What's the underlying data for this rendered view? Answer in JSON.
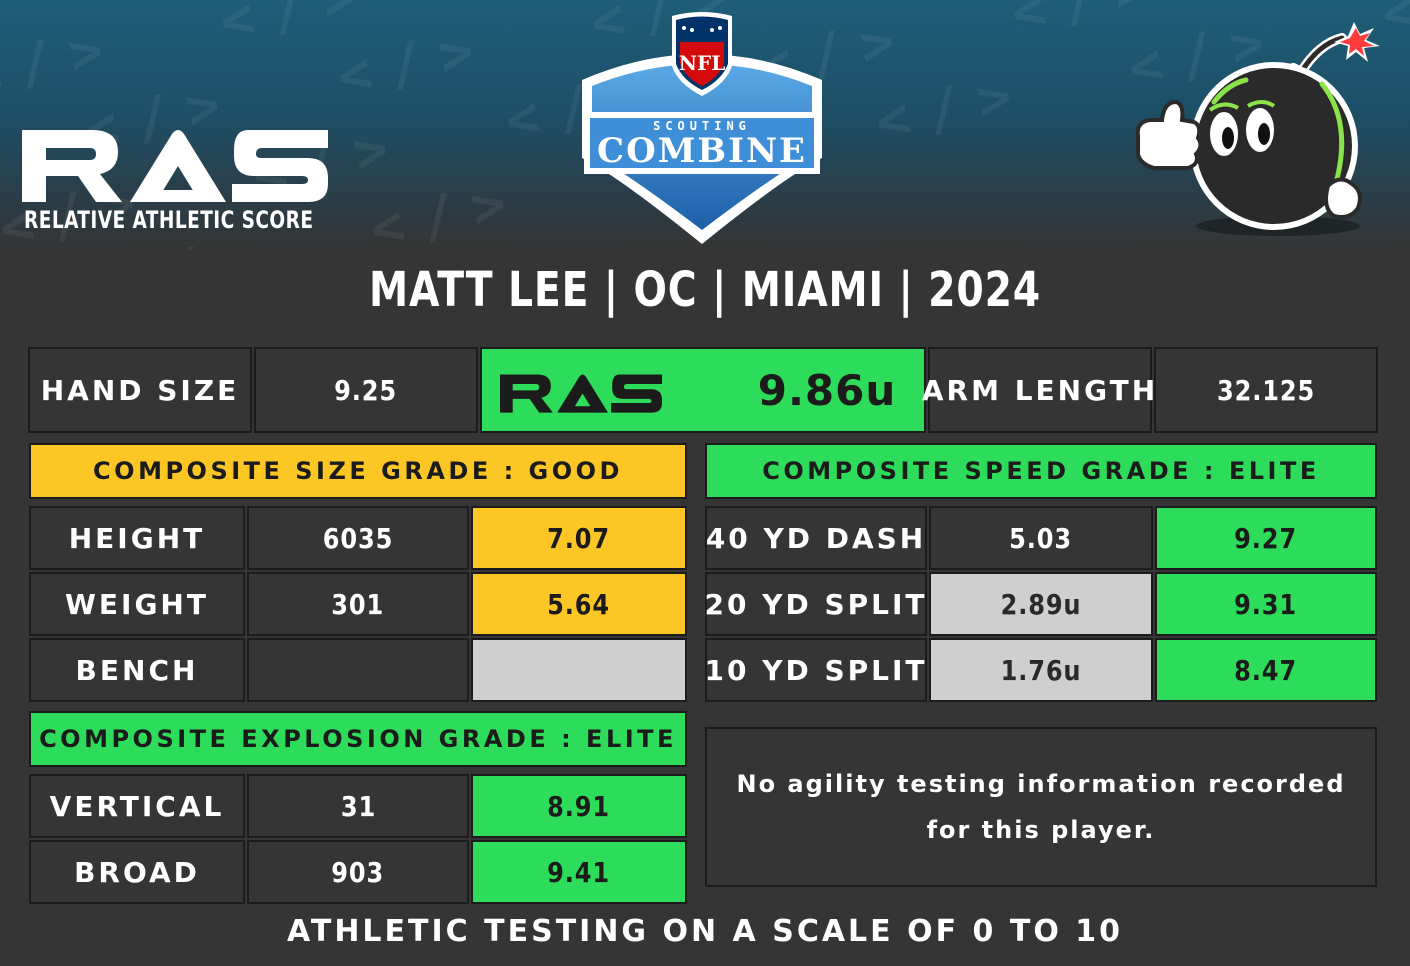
{
  "header": {
    "brand_logo_text": "RAS",
    "brand_subtitle": "RELATIVE ATHLETIC SCORE",
    "combine_logo": {
      "league_text": "NFL",
      "top_text": "SCOUTING",
      "main_text": "COMBINE"
    },
    "mascot_icon": "bomb-mascot-thumbs-up-icon"
  },
  "player": {
    "headline": "MATT LEE | OC | MIAMI | 2024"
  },
  "top_row": {
    "hand_size_label": "HAND SIZE",
    "hand_size_value": "9.25",
    "ras_logo_text": "RAS",
    "ras_score": "9.86u",
    "arm_length_label": "ARM LENGTH",
    "arm_length_value": "32.125"
  },
  "size": {
    "banner": "COMPOSITE SIZE GRADE : GOOD",
    "rows": [
      {
        "label": "HEIGHT",
        "value": "6035",
        "score": "7.07"
      },
      {
        "label": "WEIGHT",
        "value": "301",
        "score": "5.64"
      },
      {
        "label": "BENCH",
        "value": "",
        "score": ""
      }
    ]
  },
  "speed": {
    "banner": "COMPOSITE SPEED GRADE : ELITE",
    "rows": [
      {
        "label": "40 YD DASH",
        "value": "5.03",
        "score": "9.27"
      },
      {
        "label": "20 YD SPLIT",
        "value": "2.89u",
        "score": "9.31"
      },
      {
        "label": "10 YD SPLIT",
        "value": "1.76u",
        "score": "8.47"
      }
    ]
  },
  "explosion": {
    "banner": "COMPOSITE EXPLOSION GRADE : ELITE",
    "rows": [
      {
        "label": "VERTICAL",
        "value": "31",
        "score": "8.91"
      },
      {
        "label": "BROAD",
        "value": "903",
        "score": "9.41"
      }
    ]
  },
  "agility": {
    "note": "No agility testing information recorded for this player."
  },
  "footer": {
    "scale_note": "ATHLETIC TESTING ON A SCALE OF 0 TO 10"
  },
  "colors": {
    "background": "#353535",
    "elite_green": "#2ddc5a",
    "good_yellow": "#fcc624",
    "unofficial_gray": "#cfcfcf",
    "border": "#1b1b1b"
  }
}
